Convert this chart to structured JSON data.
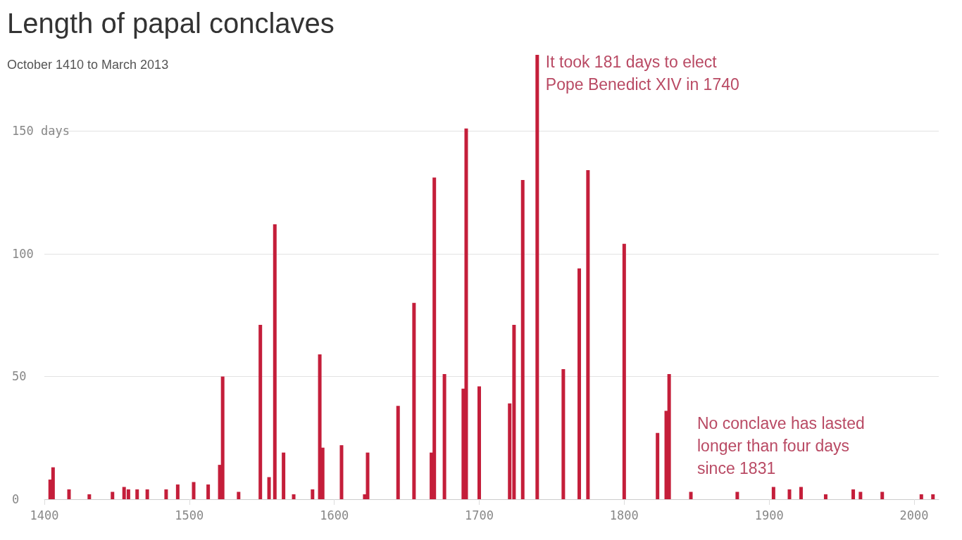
{
  "chart_data": {
    "type": "bar",
    "title": "Length of papal conclaves",
    "subtitle": "October 1410 to March 2013",
    "x": [
      1404,
      1406,
      1417,
      1431,
      1447,
      1455,
      1458,
      1464,
      1471,
      1484,
      1492,
      1503,
      1513,
      1521,
      1523,
      1534,
      1549,
      1555,
      1559,
      1565,
      1572,
      1585,
      1590,
      1592,
      1605,
      1621,
      1623,
      1644,
      1655,
      1667,
      1669,
      1676,
      1689,
      1691,
      1700,
      1721,
      1724,
      1730,
      1740,
      1758,
      1769,
      1775,
      1800,
      1823,
      1829,
      1831,
      1846,
      1878,
      1903,
      1914,
      1922,
      1939,
      1958,
      1963,
      1978,
      2005,
      2013
    ],
    "values": [
      8,
      13,
      4,
      2,
      3,
      5,
      4,
      4,
      4,
      4,
      6,
      7,
      6,
      14,
      50,
      3,
      71,
      9,
      112,
      19,
      2,
      4,
      59,
      21,
      22,
      2,
      19,
      38,
      80,
      19,
      131,
      51,
      45,
      151,
      46,
      39,
      71,
      130,
      181,
      53,
      94,
      134,
      104,
      27,
      36,
      51,
      3,
      3,
      5,
      4,
      5,
      2,
      4,
      3,
      3,
      2,
      2
    ],
    "color": "#c41e3a",
    "xlim": [
      1400,
      2017
    ],
    "xticks": [
      1400,
      1500,
      1600,
      1700,
      1800,
      1900,
      2000
    ],
    "ylim": [
      0,
      181
    ],
    "yticks": [
      0,
      50,
      100,
      {
        "value": 150,
        "label": "150 days"
      }
    ],
    "grid": "y",
    "annotations": [
      {
        "text": "It took 181 days to elect\nPope Benedict XIV in 1740",
        "x": 1740,
        "y": 181
      },
      "No conclave has lasted\nlonger than four days\nsince 1831"
    ]
  }
}
